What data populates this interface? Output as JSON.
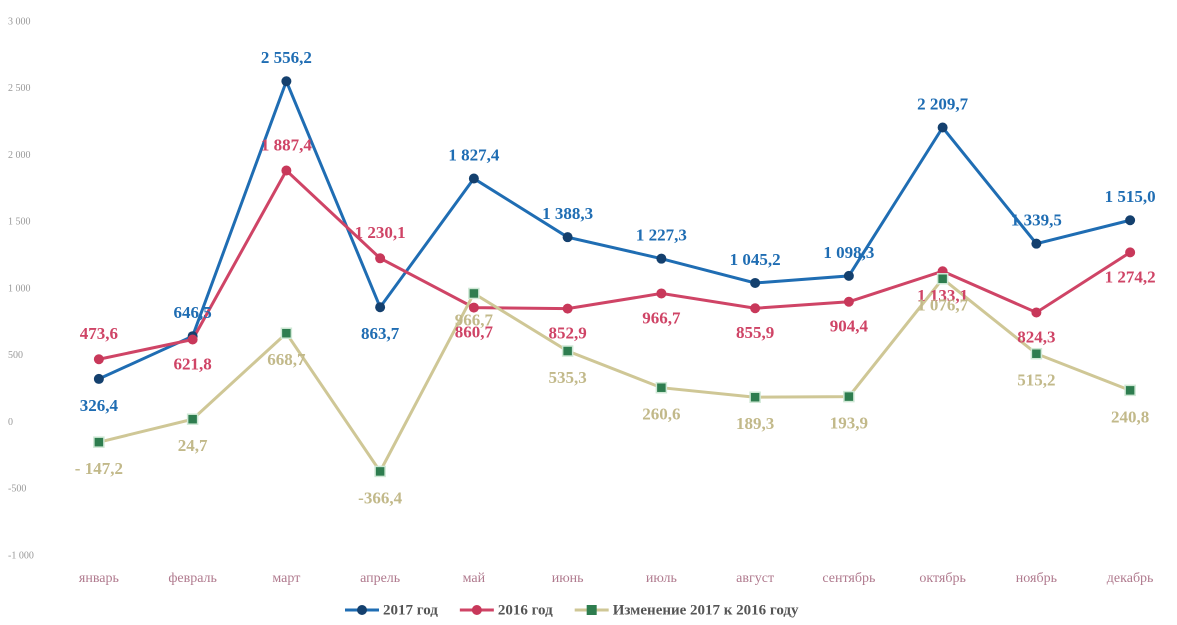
{
  "chart_data": {
    "type": "line",
    "categories": [
      "январь",
      "февраль",
      "март",
      "апрель",
      "май",
      "июнь",
      "июль",
      "август",
      "сентябрь",
      "октябрь",
      "ноябрь",
      "декабрь"
    ],
    "series": [
      {
        "name": "2017 год",
        "color": "#1f6db3",
        "marker_color": "#14406e",
        "values": [
          326.4,
          646.5,
          2556.2,
          863.7,
          1827.4,
          1388.3,
          1227.3,
          1045.2,
          1098.3,
          2209.7,
          1339.5,
          1515.0
        ],
        "value_labels": [
          "326,4",
          "646,5",
          "2 556,2",
          "863,7",
          "1 827,4",
          "1 388,3",
          "1 227,3",
          "1 045,2",
          "1 098,3",
          "2 209,7",
          "1 339,5",
          "1 515,0"
        ]
      },
      {
        "name": "2016 год",
        "color": "#cf4466",
        "marker_color": "#c8385a",
        "values": [
          473.6,
          621.8,
          1887.4,
          1230.1,
          860.7,
          852.9,
          966.7,
          855.9,
          904.4,
          1133.1,
          824.3,
          1274.2
        ],
        "value_labels": [
          "473,6",
          "621,8",
          "1 887,4",
          "1 230,1",
          "860,7",
          "852,9",
          "966,7",
          "855,9",
          "904,4",
          "1 133,1",
          "824,3",
          "1 274,2"
        ]
      },
      {
        "name": "Изменение 2017 к 2016 году",
        "color": "#cfc796",
        "marker_color": "#2e7d4f",
        "values": [
          -147.2,
          24.7,
          668.7,
          -366.4,
          966.7,
          535.3,
          260.6,
          189.3,
          193.9,
          1076.7,
          515.2,
          240.8
        ],
        "value_labels": [
          "- 147,2",
          "24,7",
          "668,7",
          "-366,4",
          "966,7",
          "535,3",
          "260,6",
          "189,3",
          "193,9",
          "1 076,7",
          "515,2",
          "240,8"
        ]
      }
    ],
    "ylim": [
      -1000,
      3000
    ],
    "yticks": [
      {
        "value": -1000,
        "label": "-1 000"
      },
      {
        "value": -500,
        "label": "-500"
      },
      0,
      500,
      {
        "value": 1000,
        "label": "1 000"
      },
      {
        "value": 1500,
        "label": "1 500"
      },
      {
        "value": 2000,
        "label": "2 000"
      },
      {
        "value": 2500,
        "label": "2 500"
      },
      {
        "value": 3000,
        "label": "3 000"
      }
    ],
    "grid": false,
    "legend": "bottom"
  }
}
